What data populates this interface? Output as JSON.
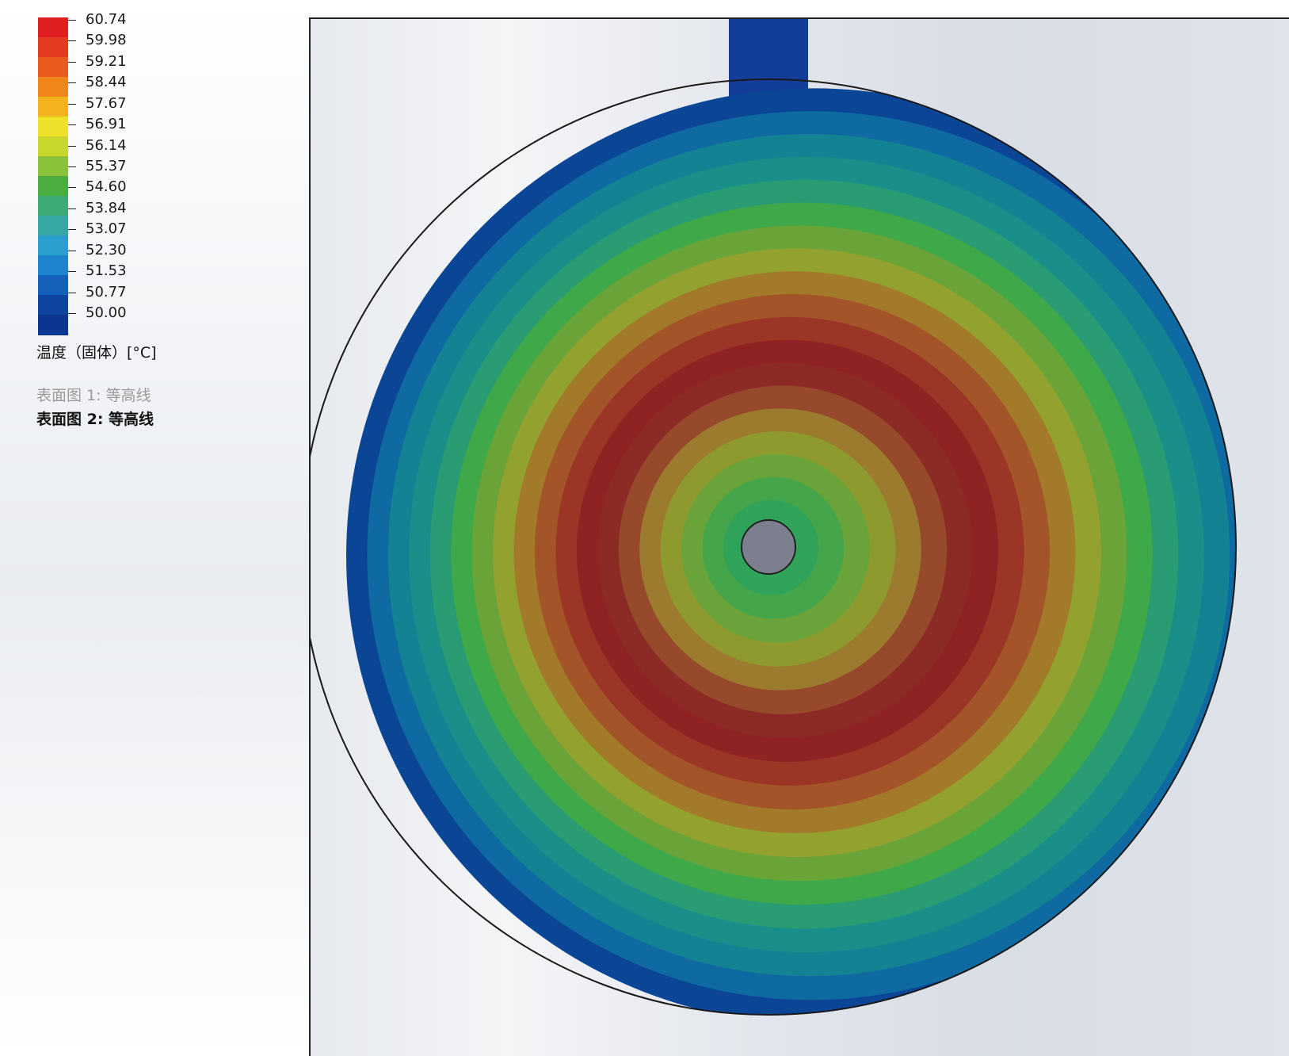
{
  "legend": {
    "values": [
      "60.74",
      "59.98",
      "59.21",
      "58.44",
      "57.67",
      "56.91",
      "56.14",
      "55.37",
      "54.60",
      "53.84",
      "53.07",
      "52.30",
      "51.53",
      "50.77",
      "50.00"
    ],
    "colors": [
      "#e02020",
      "#e43a1f",
      "#ea5a1c",
      "#f0851a",
      "#f2b31c",
      "#efe12a",
      "#c9d62c",
      "#8cc23a",
      "#49ad3f",
      "#3aab73",
      "#36a8a3",
      "#2a9fce",
      "#1d84d0",
      "#1560ba",
      "#0e44a0",
      "#0b3590"
    ],
    "title": "温度（固体）[°C]"
  },
  "plot_list": {
    "item_1": "表面图 1: 等高线",
    "item_2": "表面图 2: 等高线"
  },
  "contour_view": {
    "ring_colors": [
      "#0b4596",
      "#0f6aa1",
      "#138394",
      "#1a8f8a",
      "#2a9c74",
      "#3fa848",
      "#6aa438",
      "#93a12f",
      "#a37a2a",
      "#a35428",
      "#9b3526",
      "#8f2223",
      "#8c2a25",
      "#974a2b",
      "#9c7a2e",
      "#8f9a2e",
      "#6aa33a",
      "#44a54a",
      "#2fa35a"
    ],
    "hub_color": "#7c7f8e",
    "inlet_color": "#123e9a"
  }
}
